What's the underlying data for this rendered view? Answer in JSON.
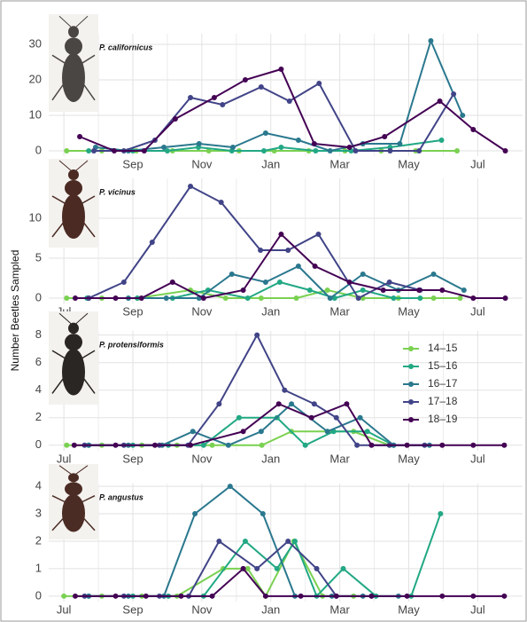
{
  "y_axis_label": "Number Beetles Sampled",
  "chart_data": [
    {
      "type": "line",
      "title": "P. californicus",
      "xlim": [
        -0.44,
        13.3
      ],
      "xticks": [
        {
          "value": 0,
          "label": "Jul"
        },
        {
          "value": 2,
          "label": "Sep"
        },
        {
          "value": 4,
          "label": "Nov"
        },
        {
          "value": 6,
          "label": "Jan"
        },
        {
          "value": 8,
          "label": "Mar"
        },
        {
          "value": 10,
          "label": "May"
        },
        {
          "value": 12,
          "label": "Jul"
        }
      ],
      "ylim": [
        -1.5,
        33
      ],
      "yticks": [
        0,
        10,
        20,
        30
      ],
      "grid": true,
      "series": [
        {
          "color": "#7ad151",
          "x": [
            0.08,
            1.1,
            2.1,
            3.15,
            4.2,
            5.08,
            6.1,
            7.1,
            8.15,
            9.2,
            10.2,
            11.4
          ],
          "values": [
            0,
            0,
            0,
            0,
            0,
            0,
            0,
            0,
            0,
            0,
            0,
            0
          ]
        },
        {
          "color": "#22a884",
          "x": [
            0.72,
            2,
            3,
            3.9,
            4.87,
            5.8,
            6.3,
            7.3,
            8.33,
            9.46,
            10.95
          ],
          "values": [
            0,
            0,
            0,
            1,
            0,
            0,
            1,
            0,
            0,
            1,
            3
          ]
        },
        {
          "color": "#2a788e",
          "x": [
            0.92,
            1.87,
            2.9,
            3.92,
            4.9,
            5.85,
            6.8,
            7.72,
            8.67,
            9.74,
            10.64,
            11.56
          ],
          "values": [
            1,
            0,
            1,
            2,
            1,
            5,
            3,
            0,
            2,
            2,
            31,
            10
          ]
        },
        {
          "color": "#414487",
          "x": [
            0.87,
            1.74,
            2.64,
            3.67,
            4.6,
            5.72,
            6.54,
            7.4,
            8.46,
            9.46,
            10.3,
            11.3
          ],
          "values": [
            0,
            0,
            3,
            15,
            13,
            18,
            14,
            19,
            0,
            0,
            0,
            16
          ]
        },
        {
          "color": "#440154",
          "x": [
            0.46,
            1.46,
            2.33,
            3.23,
            4.36,
            5.26,
            6.3,
            7.26,
            8.28,
            9.3,
            10.9,
            11.87,
            12.8
          ],
          "values": [
            4,
            0,
            0,
            9,
            15,
            20,
            23,
            2,
            1,
            4,
            14,
            6,
            0
          ]
        }
      ]
    },
    {
      "type": "line",
      "title": "P. vicinus",
      "xlim": [
        -0.44,
        13.3
      ],
      "xticks": [
        {
          "value": 0,
          "label": "Jul"
        },
        {
          "value": 2,
          "label": "Sep"
        },
        {
          "value": 4,
          "label": "Nov"
        },
        {
          "value": 6,
          "label": "Jan"
        },
        {
          "value": 8,
          "label": "Mar"
        },
        {
          "value": 10,
          "label": "May"
        },
        {
          "value": 12,
          "label": "Jul"
        }
      ],
      "ylim": [
        -0.7,
        15
      ],
      "yticks": [
        0,
        5,
        10
      ],
      "grid": true,
      "series": [
        {
          "color": "#7ad151",
          "x": [
            0.08,
            1.1,
            2.13,
            3.67,
            4.69,
            5.72,
            6.74,
            7.64,
            8.67,
            9.7,
            10.72,
            11.49
          ],
          "values": [
            0,
            0,
            0,
            1,
            0,
            0,
            0,
            1,
            0,
            0,
            0,
            0
          ]
        },
        {
          "color": "#22a884",
          "x": [
            0.67,
            2.13,
            3.15,
            4.18,
            5.33,
            6.26,
            7.13,
            7.85,
            8.67,
            9.56,
            10.33
          ],
          "values": [
            0,
            0,
            0,
            1,
            0,
            2,
            1,
            0,
            1,
            0,
            0
          ]
        },
        {
          "color": "#2a788e",
          "x": [
            0.72,
            1.87,
            2.97,
            3.92,
            4.87,
            5.85,
            6.8,
            7.72,
            8.67,
            9.7,
            10.72,
            11.6
          ],
          "values": [
            0,
            0,
            0,
            0,
            3,
            2,
            4,
            0,
            3,
            1,
            3,
            1
          ]
        },
        {
          "color": "#414487",
          "x": [
            0.72,
            1.74,
            2.56,
            3.67,
            4.56,
            5.7,
            6.5,
            7.38,
            8.54,
            9.44,
            10.33
          ],
          "values": [
            0,
            2,
            7,
            14,
            12,
            6,
            6,
            8,
            0,
            2,
            1
          ]
        },
        {
          "color": "#440154",
          "x": [
            0.33,
            1.5,
            2.25,
            3.15,
            4.05,
            5.2,
            6.3,
            7.28,
            8.28,
            9.26,
            10.3,
            10.97,
            11.87,
            12.8
          ],
          "values": [
            0,
            0,
            0,
            2,
            0,
            1,
            8,
            4,
            2,
            1,
            1,
            1,
            0,
            0
          ]
        }
      ]
    },
    {
      "type": "line",
      "title": "P. protensiformis",
      "xlim": [
        -0.44,
        13.3
      ],
      "xticks": [
        {
          "value": 0,
          "label": "Jul"
        },
        {
          "value": 2,
          "label": "Sep"
        },
        {
          "value": 4,
          "label": "Nov"
        },
        {
          "value": 6,
          "label": "Jan"
        },
        {
          "value": 8,
          "label": "Mar"
        },
        {
          "value": 10,
          "label": "May"
        },
        {
          "value": 12,
          "label": "Jul"
        }
      ],
      "ylim": [
        -0.4,
        8.3
      ],
      "yticks": [
        0,
        2,
        4,
        6,
        8
      ],
      "grid": true,
      "legend": "right",
      "series": [
        {
          "name": "14–15",
          "color": "#7ad151",
          "x": [
            0.08,
            1.1,
            2.26,
            3.28,
            4.3,
            5.74,
            6.6,
            7.64,
            8.4,
            9.44
          ],
          "values": [
            0,
            0,
            0,
            0,
            0,
            0,
            1,
            1,
            1,
            0
          ]
        },
        {
          "name": "15–16",
          "color": "#22a884",
          "x": [
            0.72,
            2,
            3.03,
            4.05,
            5.08,
            6.18,
            7,
            7.82,
            8.8,
            9.56
          ],
          "values": [
            0,
            0,
            0,
            0,
            2,
            2,
            0,
            1,
            1,
            0
          ]
        },
        {
          "name": "16–17",
          "color": "#2a788e",
          "x": [
            0.72,
            1.87,
            2.85,
            3.74,
            4.77,
            5.72,
            6.6,
            7.64,
            8.59,
            9.56,
            10.6
          ],
          "values": [
            0,
            0,
            0,
            1,
            0,
            1,
            3,
            1,
            2,
            0,
            0
          ]
        },
        {
          "name": "17–18",
          "color": "#414487",
          "x": [
            0.6,
            1.74,
            2.77,
            3.6,
            4.5,
            5.6,
            6.4,
            7.26,
            7.9,
            8.5,
            9.44,
            10.46
          ],
          "values": [
            0,
            0,
            0,
            0,
            3,
            8,
            4,
            3,
            2,
            0,
            0,
            0
          ]
        },
        {
          "name": "18–19",
          "color": "#440154",
          "x": [
            0.3,
            1.5,
            2.64,
            3.67,
            5.2,
            6.23,
            7.18,
            8.2,
            8.92,
            9.95,
            10.97,
            11.87,
            12.77
          ],
          "values": [
            0,
            0,
            0,
            0,
            1,
            3,
            2,
            3,
            0,
            0,
            0,
            0,
            0
          ]
        }
      ]
    },
    {
      "type": "line",
      "title": "P. angustus",
      "xlim": [
        -0.44,
        13.3
      ],
      "xticks": [
        {
          "value": 0,
          "label": "Jul"
        },
        {
          "value": 2,
          "label": "Sep"
        },
        {
          "value": 4,
          "label": "Nov"
        },
        {
          "value": 6,
          "label": "Jan"
        },
        {
          "value": 8,
          "label": "Mar"
        },
        {
          "value": 10,
          "label": "May"
        },
        {
          "value": 12,
          "label": "Jul"
        }
      ],
      "ylim": [
        -0.2,
        4.1
      ],
      "yticks": [
        0,
        1,
        2,
        3,
        4
      ],
      "grid": true,
      "series": [
        {
          "color": "#7ad151",
          "x": [
            0,
            1.1,
            2.26,
            3.28,
            4.62,
            5.33,
            5.85,
            6.67,
            7.5,
            8.4
          ],
          "values": [
            0,
            0,
            0,
            0,
            1,
            1,
            0,
            2,
            0,
            0
          ]
        },
        {
          "color": "#22a884",
          "x": [
            0.72,
            2,
            3.03,
            4.05,
            5.26,
            6.18,
            6.7,
            7.33,
            8.1,
            9.05,
            10.07,
            10.92
          ],
          "values": [
            0,
            0,
            0,
            0,
            2,
            1,
            2,
            0,
            1,
            0,
            0,
            3
          ]
        },
        {
          "color": "#2a788e",
          "x": [
            0.72,
            1.87,
            2.9,
            3.8,
            4.82,
            5.77,
            6.7,
            7.77,
            8.67,
            9.7
          ],
          "values": [
            0,
            0,
            0,
            3,
            4,
            3,
            0,
            0,
            0,
            0
          ]
        },
        {
          "color": "#414487",
          "x": [
            0.6,
            1.74,
            2.77,
            3.62,
            4.5,
            5.6,
            6.5,
            7.33,
            7.9,
            8.92
          ],
          "values": [
            0,
            0,
            0,
            0,
            2,
            1,
            2,
            1,
            0,
            0
          ]
        },
        {
          "color": "#440154",
          "x": [
            0.33,
            1.5,
            2.38,
            3.4,
            4.3,
            5.2,
            5.85,
            6.87,
            7.9,
            8.92,
            9.95,
            10.97,
            11.87,
            12.77
          ],
          "values": [
            0,
            0,
            0,
            0,
            0,
            1,
            0,
            0,
            0,
            0,
            0,
            0,
            0,
            0
          ]
        }
      ]
    }
  ]
}
